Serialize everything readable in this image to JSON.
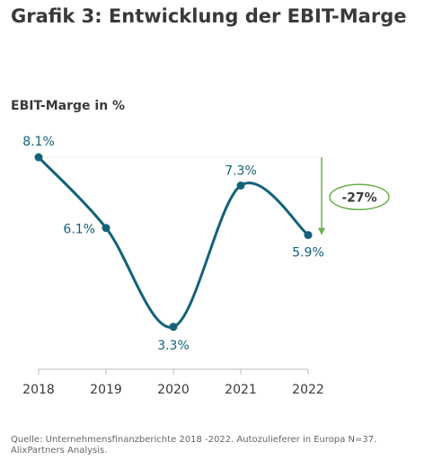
{
  "chart_data": {
    "type": "line",
    "title": "Grafik 3: Entwicklung der EBIT-Marge",
    "ylabel": "EBIT-Marge in %",
    "xlabel": "",
    "x": [
      "2018",
      "2019",
      "2020",
      "2021",
      "2022"
    ],
    "series": [
      {
        "values": [
          8.1,
          6.1,
          3.3,
          7.3,
          5.9
        ],
        "labels": [
          "8.1%",
          "6.1%",
          "3.3%",
          "7.3%",
          "5.9%"
        ]
      }
    ],
    "annotation": {
      "text": "-27%",
      "from": "2018",
      "to": "2022"
    },
    "colors": {
      "line": "#14627a",
      "accent": "#6ab04c",
      "axis": "#bbbbbb",
      "text": "#3a3a3a"
    },
    "ylim": [
      2.1,
      9.5
    ],
    "grid": false
  },
  "footer": {
    "line1": "Quelle: Unternehmensfinanzberichte 2018 -2022. Autozulieferer in Europa N=37.",
    "line2": "AlixPartners Analysis."
  }
}
